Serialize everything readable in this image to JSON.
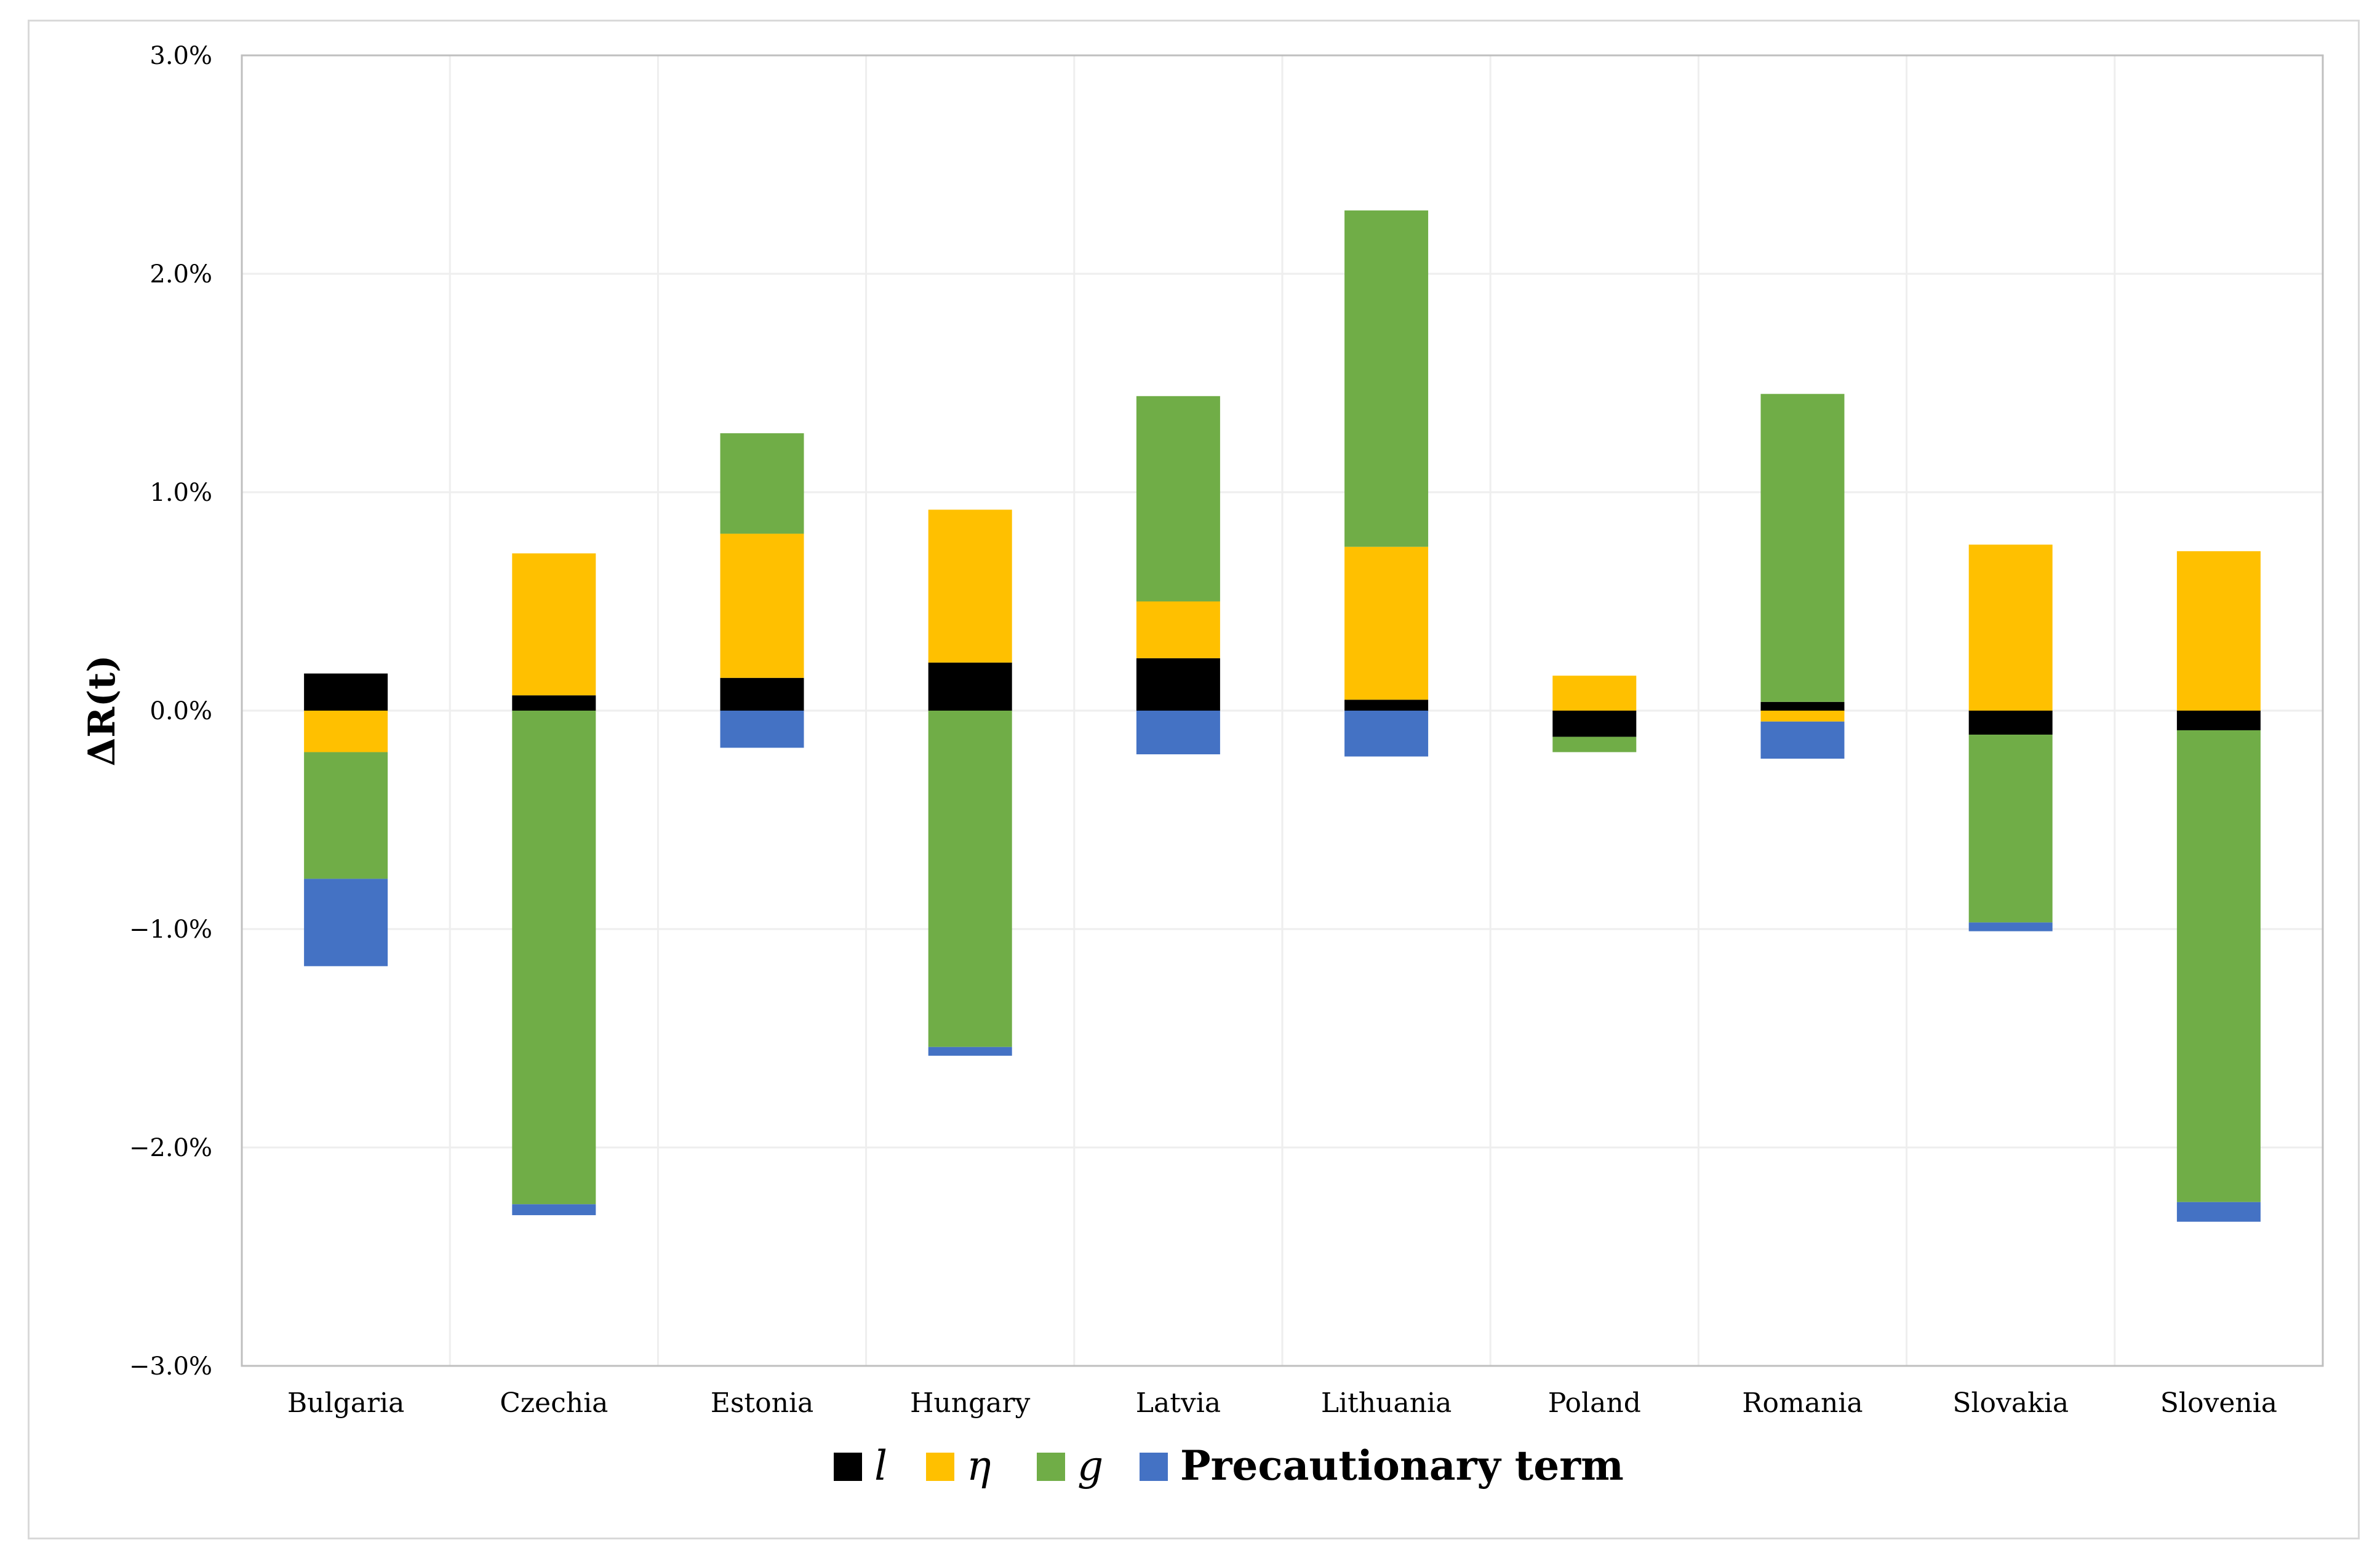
{
  "chart_data": {
    "type": "bar",
    "stacked": true,
    "title": "",
    "xlabel": "",
    "ylabel": "ΔR(t)",
    "ylim": [
      -0.03,
      0.03
    ],
    "yticks": [
      {
        "value": 0.03,
        "label": "3.0%"
      },
      {
        "value": 0.02,
        "label": "2.0%"
      },
      {
        "value": 0.01,
        "label": "1.0%"
      },
      {
        "value": 0.0,
        "label": "0.0%"
      },
      {
        "value": -0.01,
        "label": "−1.0%"
      },
      {
        "value": -0.02,
        "label": "−2.0%"
      },
      {
        "value": -0.03,
        "label": "−3.0%"
      }
    ],
    "grid": true,
    "legend_position": "bottom-center",
    "categories": [
      "Bulgaria",
      "Czechia",
      "Estonia",
      "Hungary",
      "Latvia",
      "Lithuania",
      "Poland",
      "Romania",
      "Slovakia",
      "Slovenia"
    ],
    "series": [
      {
        "name": "l",
        "color": "#000000",
        "values": [
          0.0017,
          0.0007,
          0.0015,
          0.0022,
          0.0024,
          0.0005,
          -0.0012,
          0.0004,
          -0.0011,
          -0.0009
        ]
      },
      {
        "name": "η",
        "color": "#ffc000",
        "values": [
          -0.0019,
          0.0065,
          0.0066,
          0.007,
          0.0026,
          0.007,
          0.0016,
          -0.0005,
          0.0076,
          0.0073
        ]
      },
      {
        "name": "g",
        "color": "#70ad47",
        "values": [
          -0.0058,
          -0.0226,
          0.0046,
          -0.0154,
          0.0094,
          0.0154,
          -0.0007,
          0.0141,
          -0.0086,
          -0.0216
        ]
      },
      {
        "name": "Precautionary term",
        "color": "#4472c4",
        "values": [
          -0.004,
          -0.0005,
          -0.0017,
          -0.0004,
          -0.002,
          -0.0021,
          0.0,
          -0.0017,
          -0.0004,
          -0.0009
        ]
      }
    ]
  },
  "legend": {
    "items": [
      {
        "label": "l",
        "style": "italic",
        "color": "#000000"
      },
      {
        "label": "η",
        "style": "italic",
        "color": "#ffc000"
      },
      {
        "label": "g",
        "style": "italic",
        "color": "#70ad47"
      },
      {
        "label": "Precautionary term",
        "style": "bold",
        "color": "#4472c4"
      }
    ]
  },
  "colors": {
    "grid": "#eeeeee",
    "axis": "#bfbfbf"
  }
}
